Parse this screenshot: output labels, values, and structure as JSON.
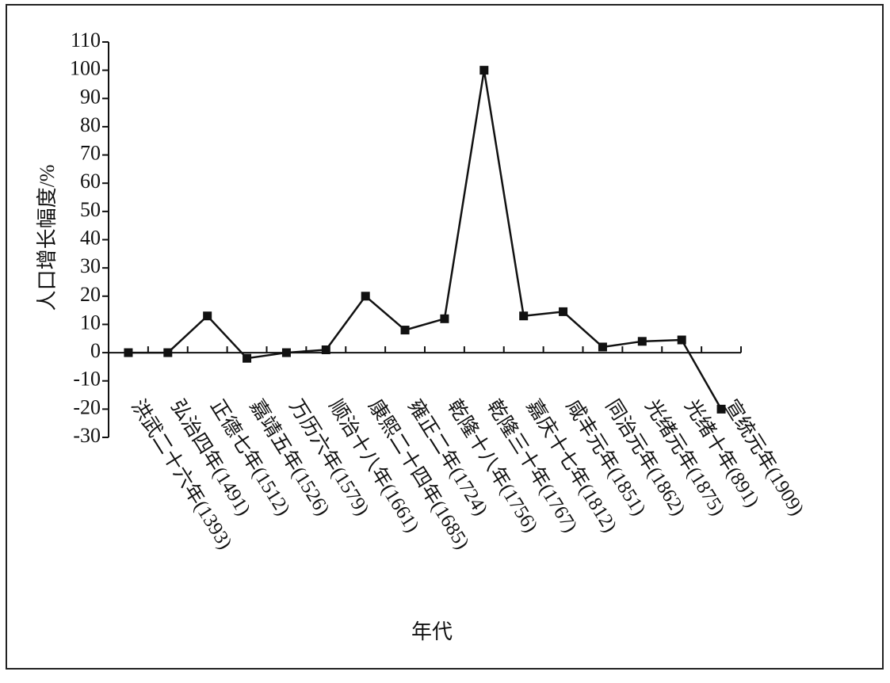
{
  "chart_data": {
    "type": "line",
    "y_label": "人口增长幅度/%",
    "x_label": "年代",
    "categories": [
      "洪武二十六年(1393)",
      "弘治四年(1491)",
      "正德七年(1512)",
      "嘉靖五年(1526)",
      "万历六年(1579)",
      "顺治十八年(1661)",
      "康熙二十四年(1685)",
      "雍正二年(1724)",
      "乾隆十八年(1756)",
      "乾隆三十年(1767)",
      "嘉庆十七年(1812)",
      "咸丰元年(1851)",
      "同治元年(1862)",
      "光绪元年(1875)",
      "光绪十年(891)",
      "宣统元年(1909)"
    ],
    "values": [
      0,
      0,
      13,
      -2,
      0,
      1,
      20,
      8,
      12,
      100,
      13,
      14.5,
      2,
      4,
      4.5,
      -20
    ],
    "color": "#111111",
    "ylim": [
      -30,
      110
    ],
    "yticks": [
      -30,
      -20,
      -10,
      0,
      10,
      20,
      30,
      40,
      50,
      60,
      70,
      80,
      90,
      100,
      110
    ],
    "grid": false
  }
}
